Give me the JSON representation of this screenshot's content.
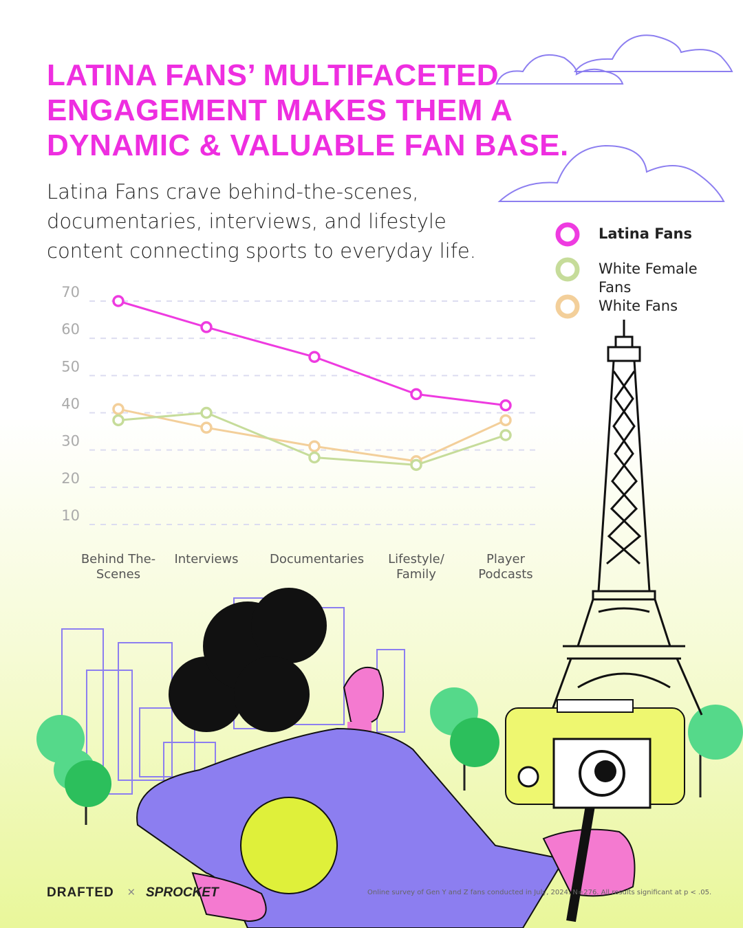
{
  "chart_data": {
    "type": "line",
    "title": "LATINA FANS’ MULTIFACETED ENGAGEMENT MAKES THEM A DYNAMIC & VALUABLE FAN BASE.",
    "subtitle": "Latina Fans crave behind-the-scenes, documentaries, interviews, and lifestyle content connecting sports to everyday life.",
    "categories": [
      "Behind The-Scenes",
      "Interviews",
      "Documentaries",
      "Lifestyle/ Family",
      "Player Podcasts"
    ],
    "series": [
      {
        "name": "Latina Fans",
        "color": "#ee3be0",
        "values": [
          70,
          63,
          55,
          45,
          42
        ]
      },
      {
        "name": "White Female Fans",
        "color": "#c6dc9a",
        "values": [
          38,
          40,
          28,
          26,
          34
        ]
      },
      {
        "name": "White Fans",
        "color": "#f3cf9a",
        "values": [
          41,
          36,
          31,
          27,
          38
        ]
      }
    ],
    "ylim": [
      10,
      70
    ],
    "yticks": [
      10,
      20,
      30,
      40,
      50,
      60,
      70
    ],
    "grid": true,
    "legend": "right"
  },
  "brands": [
    "DRAFTED",
    "SPROCKET"
  ],
  "footnote": "Online survey of Gen Y and Z fans conducted in July, 2024. N=276. All results significant at p < .05."
}
